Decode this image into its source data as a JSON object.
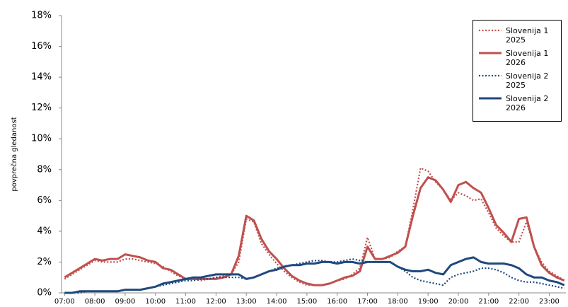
{
  "chart_data": {
    "type": "line",
    "y_label": "povprečna gledanost",
    "x": [
      7,
      7.25,
      7.5,
      7.75,
      8,
      8.25,
      8.5,
      8.75,
      9,
      9.25,
      9.5,
      9.75,
      10,
      10.25,
      10.5,
      10.75,
      11,
      11.25,
      11.5,
      11.75,
      12,
      12.25,
      12.5,
      12.75,
      13,
      13.25,
      13.5,
      13.75,
      14,
      14.25,
      14.5,
      14.75,
      15,
      15.25,
      15.5,
      15.75,
      16,
      16.25,
      16.5,
      16.75,
      17,
      17.25,
      17.5,
      17.75,
      18,
      18.25,
      18.5,
      18.75,
      19,
      19.25,
      19.5,
      19.75,
      20,
      20.25,
      20.5,
      20.75,
      21,
      21.25,
      21.5,
      21.75,
      22,
      22.25,
      22.5,
      22.75,
      23,
      23.25,
      23.5
    ],
    "series": [
      {
        "name": "Slovenija 1 2025",
        "color": "#c0504d",
        "style": "dotted",
        "values": [
          0.9,
          1.2,
          1.5,
          1.8,
          2.1,
          2.0,
          2.0,
          2.0,
          2.2,
          2.2,
          2.1,
          2.0,
          1.9,
          1.7,
          1.4,
          1.1,
          0.9,
          0.9,
          0.8,
          0.9,
          1.0,
          1.1,
          1.2,
          2.0,
          4.8,
          4.6,
          3.2,
          2.5,
          1.9,
          1.4,
          1.0,
          0.7,
          0.5,
          0.5,
          0.5,
          0.6,
          0.8,
          0.9,
          1.2,
          1.6,
          3.6,
          2.2,
          2.2,
          2.3,
          2.7,
          3.0,
          5.4,
          8.1,
          7.9,
          7.2,
          6.7,
          6.0,
          6.5,
          6.3,
          6.0,
          6.1,
          5.2,
          4.2,
          3.7,
          3.3,
          3.3,
          4.6,
          3.0,
          2.0,
          1.4,
          1.1,
          0.8
        ]
      },
      {
        "name": "Slovenija 1 2026",
        "color": "#c0504d",
        "style": "solid",
        "values": [
          1.0,
          1.3,
          1.6,
          1.9,
          2.2,
          2.1,
          2.2,
          2.2,
          2.5,
          2.4,
          2.3,
          2.1,
          2.0,
          1.6,
          1.5,
          1.2,
          0.9,
          0.9,
          0.9,
          0.9,
          0.9,
          1.0,
          1.2,
          2.4,
          5.0,
          4.7,
          3.5,
          2.7,
          2.2,
          1.6,
          1.1,
          0.8,
          0.6,
          0.5,
          0.5,
          0.6,
          0.8,
          1.0,
          1.1,
          1.4,
          3.0,
          2.2,
          2.2,
          2.4,
          2.6,
          3.0,
          5.0,
          6.8,
          7.5,
          7.3,
          6.7,
          5.9,
          7.0,
          7.2,
          6.8,
          6.5,
          5.5,
          4.4,
          3.9,
          3.3,
          4.8,
          4.9,
          3.0,
          1.8,
          1.3,
          1.0,
          0.8
        ]
      },
      {
        "name": "Slovenija 2 2025",
        "color": "#1f497d",
        "style": "dotted",
        "values": [
          0.0,
          0.0,
          0.0,
          0.1,
          0.1,
          0.1,
          0.1,
          0.1,
          0.2,
          0.2,
          0.2,
          0.3,
          0.4,
          0.5,
          0.6,
          0.7,
          0.8,
          0.8,
          0.9,
          0.9,
          1.0,
          1.0,
          1.0,
          1.0,
          0.9,
          1.0,
          1.2,
          1.4,
          1.6,
          1.7,
          1.8,
          1.9,
          2.0,
          2.1,
          2.1,
          2.0,
          2.0,
          2.1,
          2.2,
          2.1,
          2.0,
          2.0,
          2.0,
          2.0,
          1.7,
          1.4,
          1.0,
          0.8,
          0.7,
          0.6,
          0.5,
          1.0,
          1.2,
          1.3,
          1.4,
          1.6,
          1.6,
          1.5,
          1.3,
          1.0,
          0.8,
          0.7,
          0.7,
          0.6,
          0.5,
          0.4,
          0.3
        ]
      },
      {
        "name": "Slovenija 2 2026",
        "color": "#1f497d",
        "style": "solid",
        "values": [
          0.0,
          0.0,
          0.1,
          0.1,
          0.1,
          0.1,
          0.1,
          0.1,
          0.2,
          0.2,
          0.2,
          0.3,
          0.4,
          0.6,
          0.7,
          0.8,
          0.9,
          1.0,
          1.0,
          1.1,
          1.2,
          1.2,
          1.2,
          1.2,
          0.9,
          1.0,
          1.2,
          1.4,
          1.5,
          1.7,
          1.8,
          1.8,
          1.9,
          1.9,
          2.0,
          2.0,
          1.9,
          2.0,
          2.0,
          1.9,
          2.0,
          2.0,
          2.0,
          2.0,
          1.7,
          1.5,
          1.4,
          1.4,
          1.5,
          1.3,
          1.2,
          1.8,
          2.0,
          2.2,
          2.3,
          2.0,
          1.9,
          1.9,
          1.9,
          1.8,
          1.6,
          1.2,
          1.0,
          1.0,
          0.8,
          0.7,
          0.5
        ]
      }
    ],
    "xlim": [
      6.9,
      23.55
    ],
    "ylim": [
      0,
      18
    ],
    "xticks": [
      {
        "value": 7,
        "label": "07:00"
      },
      {
        "value": 8,
        "label": "08:00"
      },
      {
        "value": 9,
        "label": "09:00"
      },
      {
        "value": 10,
        "label": "10:00"
      },
      {
        "value": 11,
        "label": "11:00"
      },
      {
        "value": 12,
        "label": "12:00"
      },
      {
        "value": 13,
        "label": "13:00"
      },
      {
        "value": 14,
        "label": "14:00"
      },
      {
        "value": 15,
        "label": "15:00"
      },
      {
        "value": 16,
        "label": "16:00"
      },
      {
        "value": 17,
        "label": "17:00"
      },
      {
        "value": 18,
        "label": "18:00"
      },
      {
        "value": 19,
        "label": "19:00"
      },
      {
        "value": 20,
        "label": "20:00"
      },
      {
        "value": 21,
        "label": "21:00"
      },
      {
        "value": 22,
        "label": "22:00"
      },
      {
        "value": 23,
        "label": "23:00"
      }
    ],
    "yticks": [
      {
        "value": 0,
        "label": "0%"
      },
      {
        "value": 2,
        "label": "2%"
      },
      {
        "value": 4,
        "label": "4%"
      },
      {
        "value": 6,
        "label": "6%"
      },
      {
        "value": 8,
        "label": "8%"
      },
      {
        "value": 10,
        "label": "10%"
      },
      {
        "value": 12,
        "label": "12%"
      },
      {
        "value": 14,
        "label": "14%"
      },
      {
        "value": 16,
        "label": "16%"
      },
      {
        "value": 18,
        "label": "18%"
      }
    ],
    "legend": "upper right"
  }
}
